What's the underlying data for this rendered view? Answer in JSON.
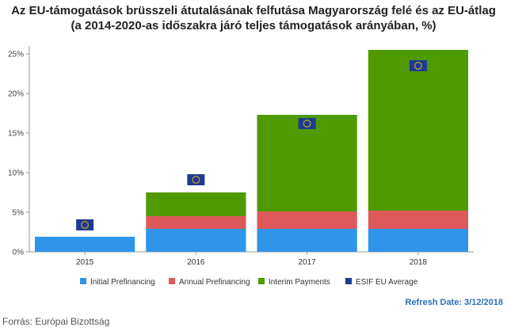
{
  "title": "Az EU-támogatások brüsszeli átutalásának felfutása Magyarország felé és az EU-átlag",
  "subtitle": "(a 2014-2020-as időszakra járó teljes támogatások arányában, %)",
  "refresh_text": "Refresh Date: 3/12/2018",
  "source_text": "Forrás: Európai  Bizottság",
  "chart_data": {
    "type": "bar",
    "stacked": true,
    "categories": [
      "2015",
      "2016",
      "2017",
      "2018"
    ],
    "series": [
      {
        "name": "Initial Prefinancing",
        "color": "#2e95e8",
        "values": [
          1.9,
          2.9,
          2.9,
          2.9
        ]
      },
      {
        "name": "Annual Prefinancing",
        "color": "#de5a5a",
        "values": [
          0,
          1.6,
          2.2,
          2.3
        ]
      },
      {
        "name": "Interim Payments",
        "color": "#4f9a00",
        "values": [
          0,
          3.0,
          12.2,
          20.3
        ]
      }
    ],
    "eu_average": {
      "name": "ESIF EU Average",
      "color": "#1e3a93",
      "values": [
        3.4,
        9.1,
        16.2,
        23.5
      ]
    },
    "ylim": [
      0,
      26
    ],
    "yticks": [
      0,
      5,
      10,
      15,
      20,
      25
    ],
    "ytick_format": "%",
    "grid": false,
    "legend_position": "bottom"
  }
}
